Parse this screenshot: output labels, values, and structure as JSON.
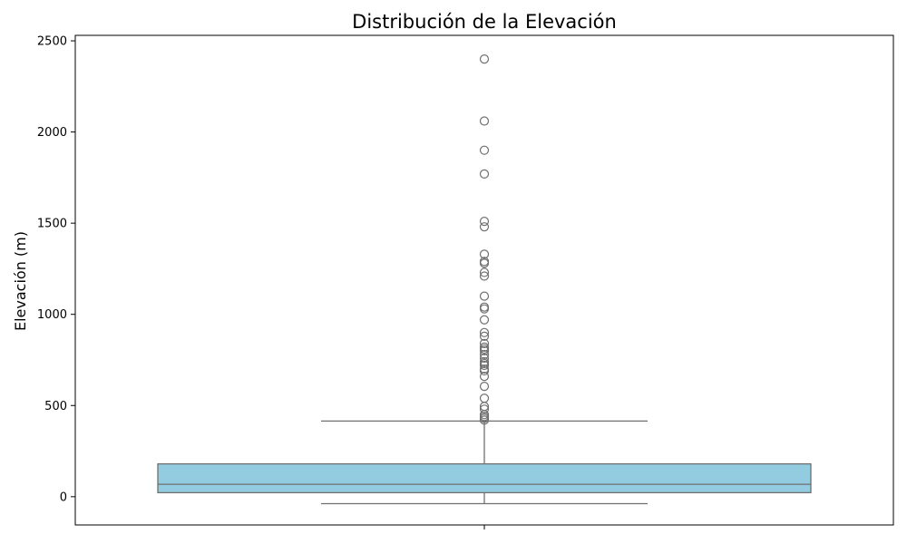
{
  "chart_data": {
    "type": "box",
    "title": "Distribución de la Elevación",
    "xlabel": "",
    "ylabel": "Elevación (m)",
    "ylim": [
      -155,
      2530
    ],
    "yticks": [
      0,
      500,
      1000,
      1500,
      2000,
      2500
    ],
    "grid": false,
    "box_color": "#93cbe0",
    "line_color": "#707070",
    "boxes": [
      {
        "whisker_low": -38,
        "q1": 22,
        "median": 68,
        "q3": 180,
        "whisker_high": 415,
        "outliers": [
          2400,
          2060,
          1900,
          1770,
          1510,
          1480,
          1330,
          1290,
          1280,
          1230,
          1210,
          1100,
          1040,
          1030,
          970,
          900,
          880,
          840,
          820,
          810,
          800,
          780,
          760,
          740,
          730,
          720,
          700,
          690,
          660,
          605,
          540,
          495,
          480,
          450,
          440,
          430,
          420
        ]
      }
    ]
  }
}
